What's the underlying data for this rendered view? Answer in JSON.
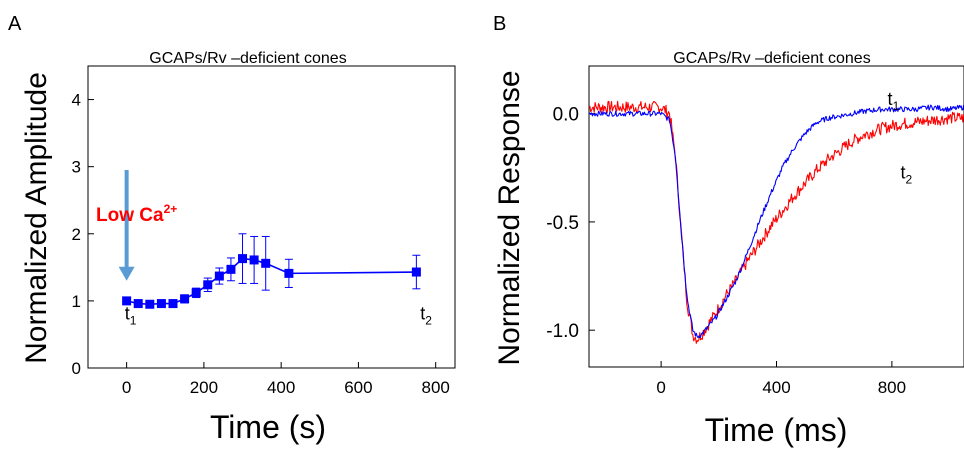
{
  "chart_data": [
    {
      "panel_label": "A",
      "type": "line",
      "title": "GCAPs/Rv –deficient cones",
      "xlabel": "Time (s)",
      "ylabel": "Normalized Amplitude",
      "xlim": [
        -100,
        850
      ],
      "ylim": [
        0,
        4.5
      ],
      "xticks": [
        0,
        200,
        400,
        600,
        800
      ],
      "yticks": [
        0,
        1,
        2,
        3,
        4
      ],
      "grid": false,
      "series": [
        {
          "color": "#0000ff",
          "marker": "square",
          "x": [
            0,
            30,
            60,
            90,
            120,
            150,
            180,
            210,
            240,
            270,
            300,
            330,
            360,
            420,
            750
          ],
          "y": [
            1.0,
            0.96,
            0.95,
            0.96,
            0.96,
            1.03,
            1.12,
            1.24,
            1.37,
            1.47,
            1.63,
            1.61,
            1.56,
            1.41,
            1.43
          ],
          "err": [
            0.04,
            0.04,
            0.05,
            0.05,
            0.05,
            0.06,
            0.07,
            0.1,
            0.12,
            0.17,
            0.37,
            0.35,
            0.4,
            0.21,
            0.25
          ]
        }
      ],
      "annotations": {
        "low_ca_base": "Low Ca",
        "low_ca_sup": "2+",
        "low_ca_color": "#ff0000",
        "arrow_color": "#5b9bd5",
        "arrow_x": 0,
        "arrow_from_y": 2.95,
        "arrow_to_y": 1.3,
        "t1_base": "t",
        "t1_sub": "1",
        "t1_x": -5,
        "t1_y": 0.72,
        "t2_base": "t",
        "t2_sub": "2",
        "t2_x": 760,
        "t2_y": 0.72
      }
    },
    {
      "panel_label": "B",
      "type": "line",
      "title": "GCAPs/Rv –deficient cones",
      "xlabel": "Time (ms)",
      "ylabel": "Normalized Response",
      "xlim": [
        -250,
        1050
      ],
      "ylim": [
        -1.17,
        0.22
      ],
      "xticks": [
        0,
        400,
        800
      ],
      "yticks": [
        0.0,
        -0.5,
        -1.0
      ],
      "ytick_labels": [
        "0.0",
        "-0.5",
        "-1.0"
      ],
      "grid": false,
      "series": [
        {
          "label_base": "t",
          "label_sub": "1",
          "label_x": 785,
          "label_y": 0.04,
          "color": "#0000ff",
          "x": [
            -250,
            0,
            30,
            50,
            70,
            90,
            110,
            125,
            140,
            160,
            190,
            220,
            260,
            300,
            340,
            380,
            420,
            460,
            500,
            540,
            580,
            620,
            660,
            700,
            760,
            820,
            880,
            940,
            1000,
            1050
          ],
          "y": [
            0.0,
            0.0,
            -0.03,
            -0.2,
            -0.55,
            -0.85,
            -1.0,
            -1.03,
            -1.02,
            -0.99,
            -0.94,
            -0.87,
            -0.77,
            -0.64,
            -0.5,
            -0.37,
            -0.25,
            -0.16,
            -0.09,
            -0.04,
            -0.02,
            -0.01,
            0.0,
            0.01,
            0.02,
            0.02,
            0.02,
            0.03,
            0.02,
            0.03
          ]
        },
        {
          "label_base": "t",
          "label_sub": "2",
          "label_x": 830,
          "label_y": -0.3,
          "color": "#ff0000",
          "x": [
            -250,
            0,
            30,
            50,
            70,
            90,
            110,
            125,
            140,
            160,
            190,
            220,
            260,
            300,
            340,
            380,
            420,
            460,
            500,
            540,
            580,
            620,
            660,
            700,
            760,
            820,
            880,
            940,
            1000,
            1050
          ],
          "y": [
            0.03,
            0.03,
            0.0,
            -0.2,
            -0.55,
            -0.87,
            -1.02,
            -1.04,
            -1.02,
            -0.98,
            -0.92,
            -0.85,
            -0.77,
            -0.68,
            -0.6,
            -0.52,
            -0.45,
            -0.38,
            -0.32,
            -0.26,
            -0.21,
            -0.17,
            -0.13,
            -0.1,
            -0.07,
            -0.05,
            -0.04,
            -0.03,
            -0.02,
            -0.02
          ]
        }
      ]
    }
  ]
}
